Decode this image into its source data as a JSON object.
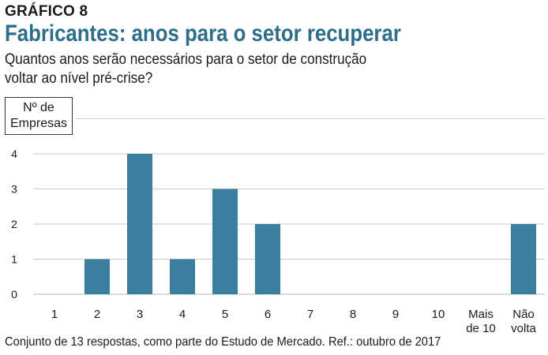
{
  "header": {
    "kicker": "GRÁFICO 8",
    "title": "Fabricantes: anos para o setor recuperar",
    "subtitle": "Quantos anos serão necessários para o setor de construção voltar ao nível pré-crise?"
  },
  "footnote": "Conjunto de 13 respostas, como parte do Estudo de Mercado. Ref.: outubro de 2017",
  "chart_data": {
    "type": "bar",
    "ylabel_lines": [
      "Nº de",
      "Empresas"
    ],
    "categories": [
      "1",
      "2",
      "3",
      "4",
      "5",
      "6",
      "7",
      "8",
      "9",
      "10",
      "Mais de 10",
      "Não volta"
    ],
    "category_lines": [
      [
        "1"
      ],
      [
        "2"
      ],
      [
        "3"
      ],
      [
        "4"
      ],
      [
        "5"
      ],
      [
        "6"
      ],
      [
        "7"
      ],
      [
        "8"
      ],
      [
        "9"
      ],
      [
        "10"
      ],
      [
        "Mais",
        "de 10"
      ],
      [
        "Não",
        "volta"
      ]
    ],
    "values": [
      0,
      1,
      4,
      1,
      3,
      2,
      0,
      0,
      0,
      0,
      0,
      2
    ],
    "yticks": [
      0,
      1,
      2,
      3,
      4
    ],
    "ylim": [
      0,
      5
    ],
    "grid": true,
    "bar_color": "#3a7f9e",
    "grid_color": "#c8c8c8"
  }
}
